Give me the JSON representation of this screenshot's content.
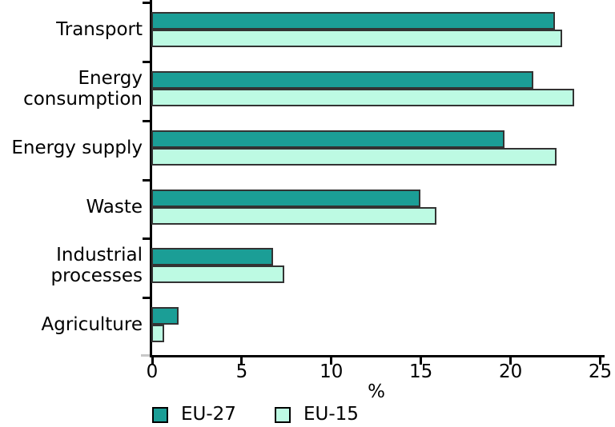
{
  "chart_data": {
    "type": "bar",
    "orientation": "horizontal",
    "title": "",
    "xlabel": "%",
    "ylabel": "",
    "xlim": [
      0,
      25
    ],
    "xticks": [
      0,
      5,
      10,
      15,
      20,
      25
    ],
    "grid": false,
    "legend_position": "bottom",
    "categories": [
      "Transport",
      "Energy consumption",
      "Energy supply",
      "Waste",
      "Industrial processes",
      "Agriculture"
    ],
    "category_label_lines": [
      [
        "Transport"
      ],
      [
        "Energy",
        "consumption"
      ],
      [
        "Energy supply"
      ],
      [
        "Waste"
      ],
      [
        "Industrial",
        "processes"
      ],
      [
        "Agriculture"
      ]
    ],
    "series": [
      {
        "name": "EU-27",
        "color": "#1B9E96",
        "values": [
          22.5,
          21.3,
          19.7,
          15.0,
          6.8,
          1.5
        ]
      },
      {
        "name": "EU-15",
        "color": "#BDFAE3",
        "values": [
          22.9,
          23.6,
          22.6,
          15.9,
          7.4,
          0.7
        ]
      }
    ],
    "bar_border_color": "#333333",
    "axis_color": "#000000"
  },
  "legend": {
    "items": [
      {
        "label": "EU-27",
        "color": "#1B9E96"
      },
      {
        "label": "EU-15",
        "color": "#BDFAE3"
      }
    ]
  }
}
